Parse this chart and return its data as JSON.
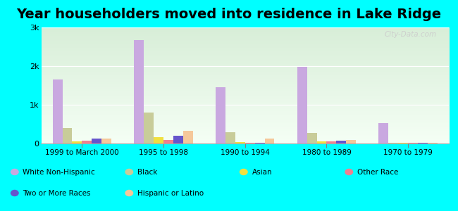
{
  "title": "Year householders moved into residence in Lake Ridge",
  "categories": [
    "1999 to March 2000",
    "1995 to 1998",
    "1990 to 1994",
    "1980 to 1989",
    "1970 to 1979"
  ],
  "series": {
    "White Non-Hispanic": [
      1650,
      2680,
      1450,
      1980,
      520
    ],
    "Black": [
      400,
      800,
      300,
      280,
      20
    ],
    "Asian": [
      60,
      170,
      40,
      50,
      10
    ],
    "Other Race": [
      80,
      100,
      10,
      60,
      10
    ],
    "Two or More Races": [
      130,
      200,
      20,
      80,
      10
    ],
    "Hispanic or Latino": [
      130,
      330,
      120,
      100,
      20
    ]
  },
  "colors": {
    "White Non-Hispanic": "#c9a8e0",
    "Black": "#c8cc99",
    "Asian": "#f0e040",
    "Other Race": "#f08090",
    "Two or More Races": "#6655cc",
    "Hispanic or Latino": "#f5c89a"
  },
  "ylim": [
    0,
    3000
  ],
  "yticks": [
    0,
    1000,
    2000,
    3000
  ],
  "ytick_labels": [
    "0",
    "1k",
    "2k",
    "3k"
  ],
  "background_color": "#00ffff",
  "plot_bg_top": "#d8eed8",
  "plot_bg_bottom": "#f5fff5",
  "watermark": "City-Data.com",
  "title_fontsize": 14,
  "bar_width": 0.12
}
